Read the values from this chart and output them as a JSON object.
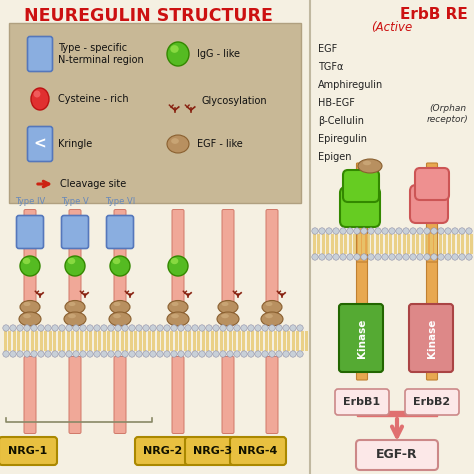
{
  "bg_color": "#f5f0e2",
  "legend_bg": "#c8b896",
  "title_left": "NEUREGULIN STRUCTURE",
  "title_color": "#cc1111",
  "label_bg_color": "#e8c040",
  "erbb_ligands": [
    "EGF",
    "TGFα",
    "Amphiregulin",
    "HB-EGF",
    "β-Cellulin",
    "Epiregulin",
    "Epigen"
  ],
  "stem_color": "#f0a898",
  "stem_outline": "#d07868",
  "blue_rect_fc": "#8aaee0",
  "blue_rect_ec": "#5577bb",
  "green_ellipse_fc": "#55bb22",
  "green_ellipse_ec": "#338800",
  "brown_ellipse_fc": "#b89060",
  "brown_ellipse_ec": "#8a6030",
  "red_arrow_color": "#cc2211",
  "membrane_circle_fc": "#c8d0d8",
  "membrane_circle_ec": "#9090a8",
  "membrane_stripe_fc": "#e8c870",
  "kinase1_fc": "#55aa33",
  "kinase1_ec": "#226600",
  "kinase2_fc": "#dd8888",
  "kinase2_ec": "#aa4444",
  "orange_stem_fc": "#e8a850",
  "orange_stem_ec": "#c08030",
  "erbb_label_fc": "#fce8e8",
  "erbb_label_ec": "#cc8888",
  "egfr_label_fc": "#fce8e8",
  "egfr_label_ec": "#cc8888",
  "divider_color": "#c0b8a0",
  "type_label_color": "#6688bb",
  "glyco_color": "#882211",
  "green_snake_fc": "#66cc22",
  "green_snake_ec": "#338800",
  "pink_snake_fc": "#ee9090",
  "pink_snake_ec": "#cc5555"
}
